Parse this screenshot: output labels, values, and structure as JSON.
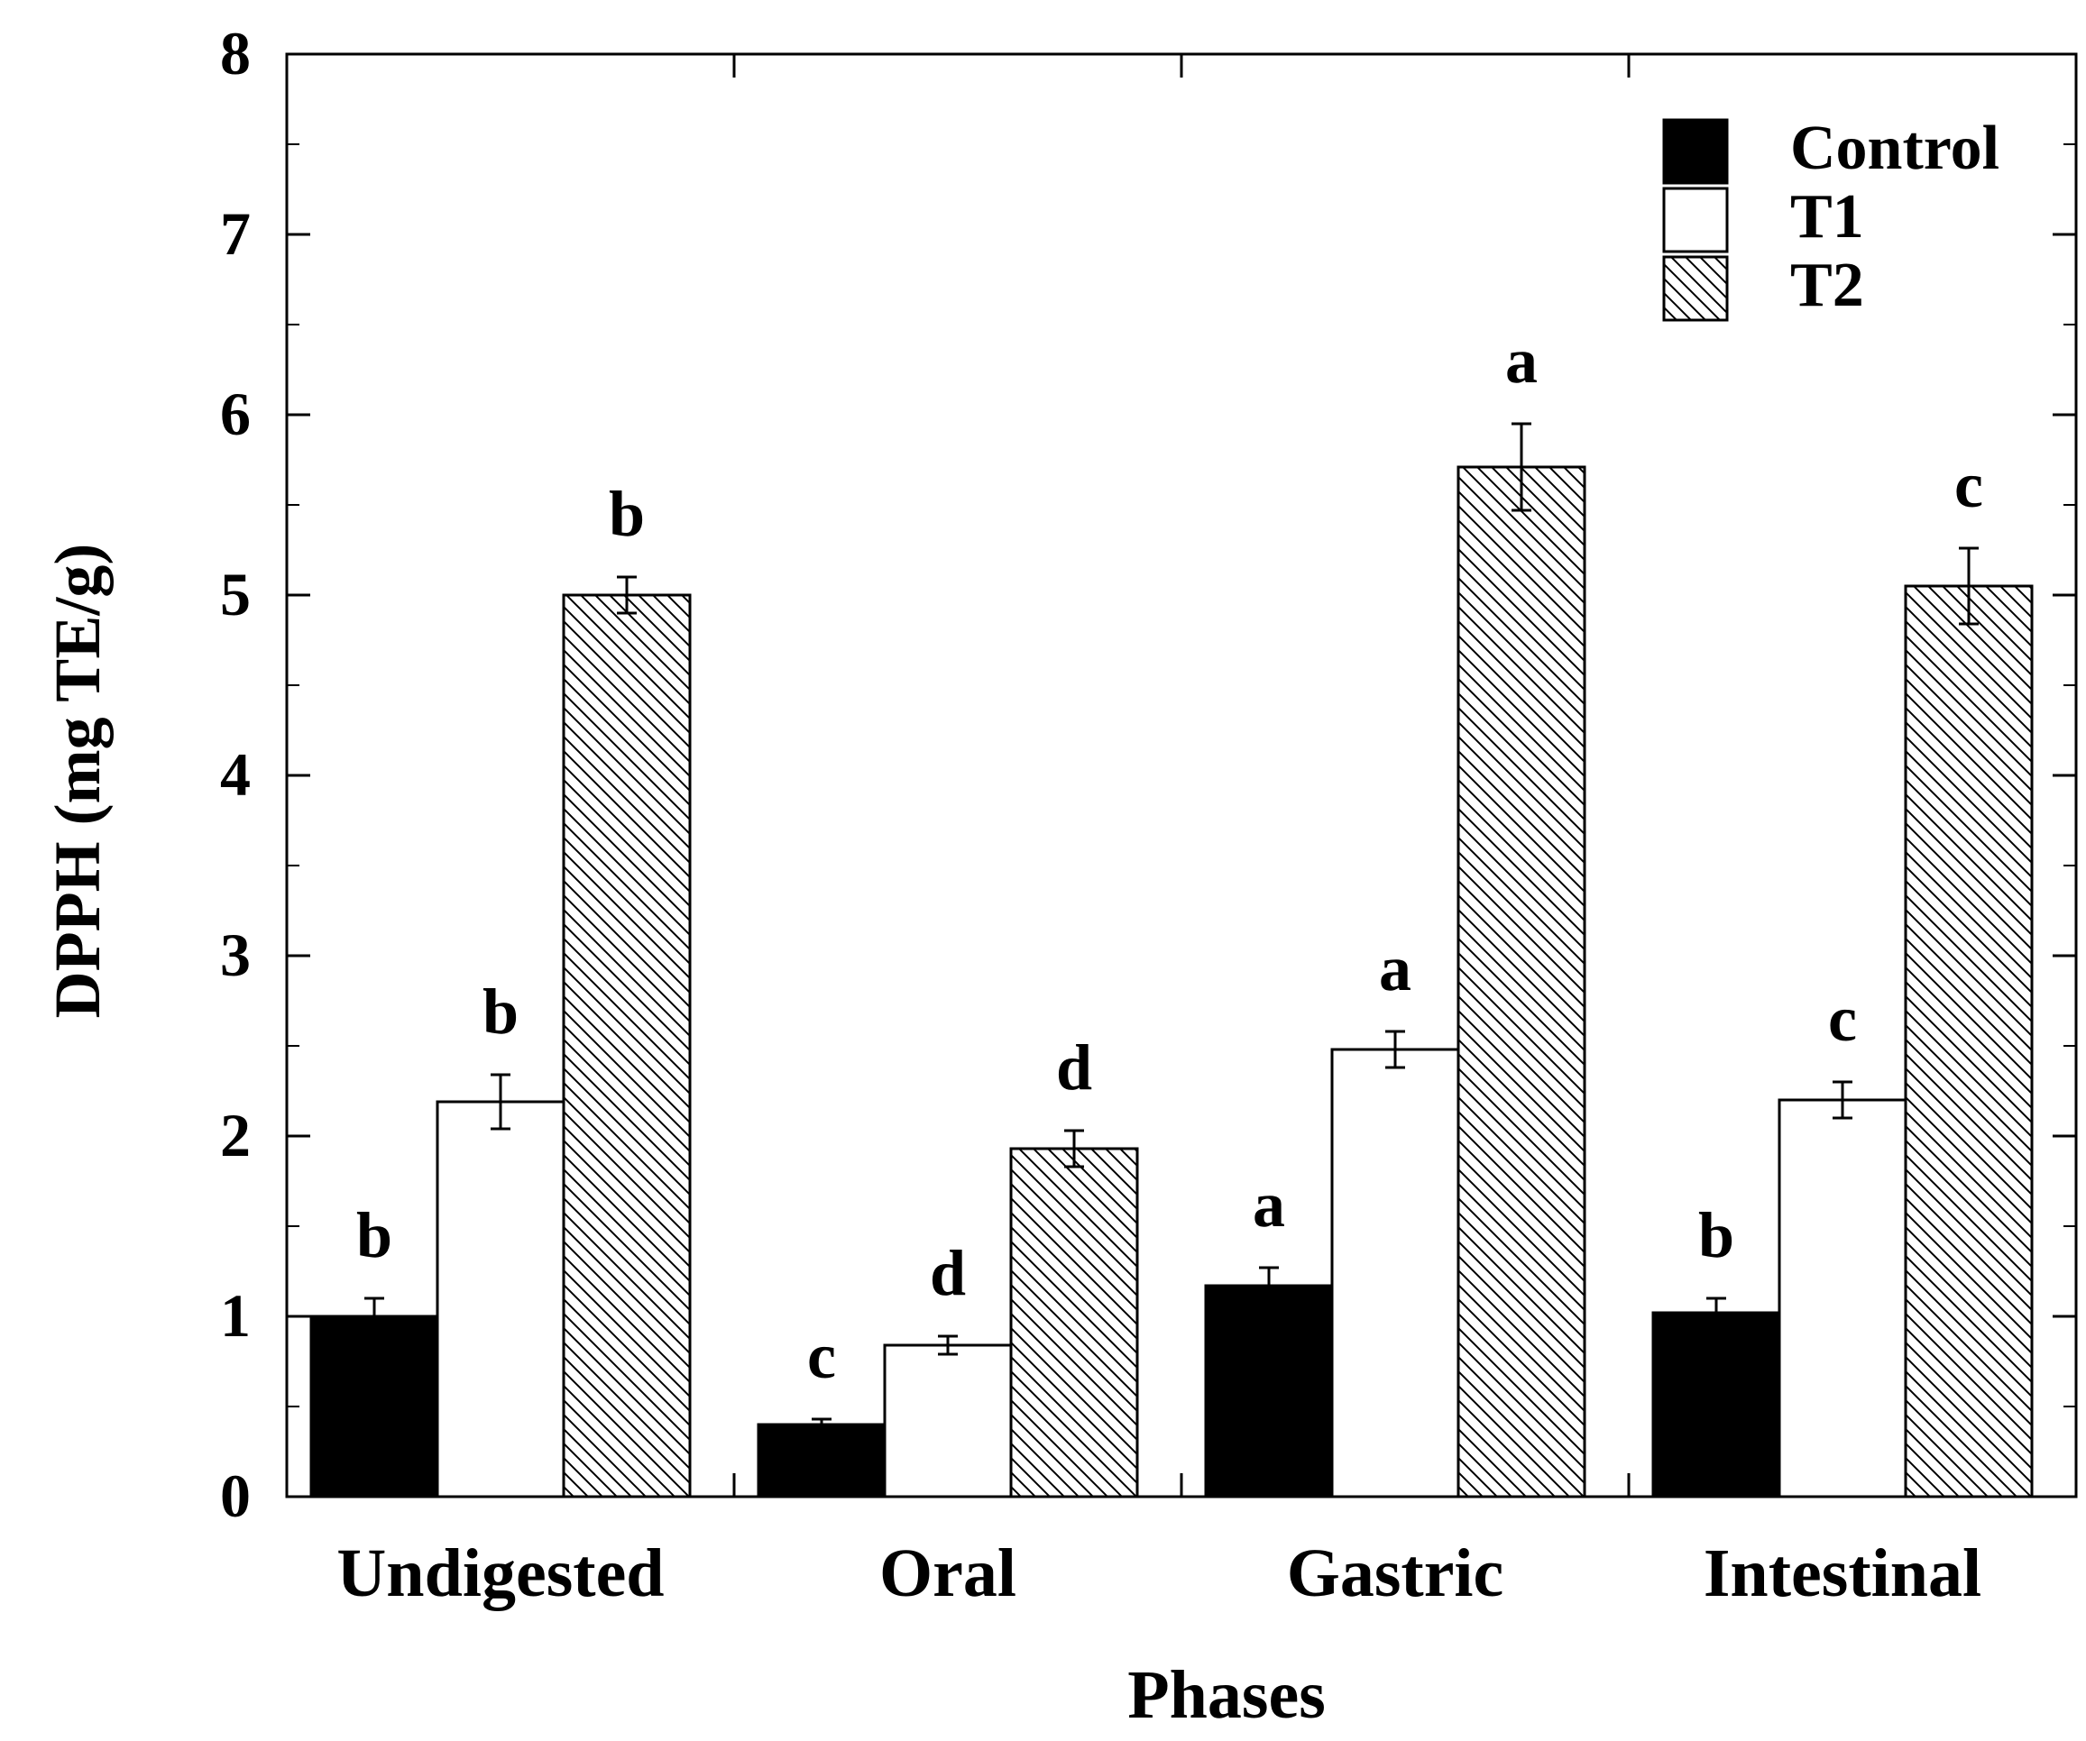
{
  "chart_data": {
    "type": "bar",
    "title": "",
    "xlabel": "Phases",
    "ylabel": "DPPH (mg TE/g)",
    "ylim": [
      0,
      8
    ],
    "yticks": [
      0,
      1,
      2,
      3,
      4,
      5,
      6,
      7,
      8
    ],
    "categories": [
      "Undigested",
      "Oral",
      "Gastric",
      "Intestinal"
    ],
    "legend_position": "top-right",
    "series": [
      {
        "name": "Control",
        "fill": "solid",
        "color": "#000000",
        "values": [
          1.0,
          0.4,
          1.17,
          1.02
        ],
        "errors": [
          0.1,
          0.03,
          0.1,
          0.08
        ],
        "labels": [
          "b",
          "c",
          "a",
          "b"
        ]
      },
      {
        "name": "T1",
        "fill": "open",
        "color": "#ffffff",
        "values": [
          2.19,
          0.84,
          2.48,
          2.2
        ],
        "errors": [
          0.15,
          0.05,
          0.1,
          0.1
        ],
        "labels": [
          "b",
          "d",
          "a",
          "c"
        ]
      },
      {
        "name": "T2",
        "fill": "hatched",
        "color": "#ffffff",
        "values": [
          5.0,
          1.93,
          5.71,
          5.05
        ],
        "errors": [
          0.1,
          0.1,
          0.24,
          0.21
        ],
        "labels": [
          "b",
          "d",
          "a",
          "c"
        ]
      }
    ]
  }
}
